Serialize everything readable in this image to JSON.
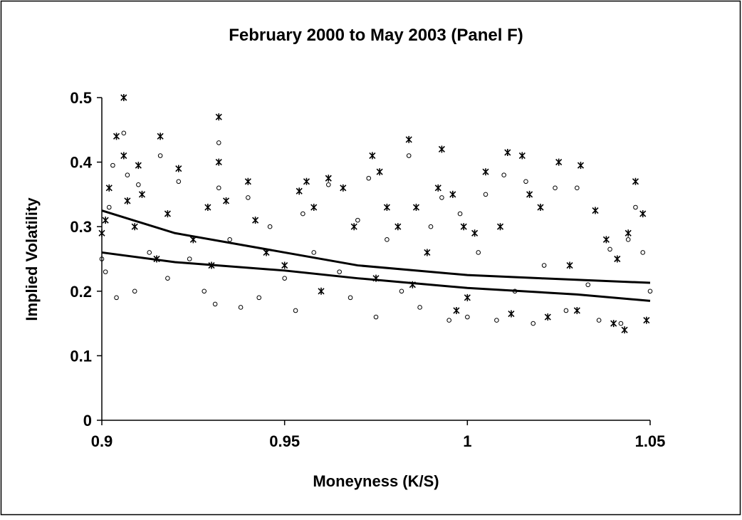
{
  "chart_data": {
    "type": "scatter",
    "title": "February 2000 to May 2003 (Panel F)",
    "x_label": "Moneyness (K/S)",
    "y_label": "Implied Volatility",
    "xlim": [
      0.9,
      1.05
    ],
    "xticks": [
      0.9,
      0.95,
      1,
      1.05
    ],
    "ylim": [
      0,
      0.5
    ],
    "yticks": [
      0,
      0.1,
      0.2,
      0.3,
      0.4,
      0.5
    ],
    "grid": false,
    "series": [
      {
        "kind": "scatter",
        "marker": "asterisk",
        "color": "#000000",
        "x": [
          0.9,
          0.901,
          0.902,
          0.904,
          0.906,
          0.906,
          0.907,
          0.909,
          0.91,
          0.911,
          0.916,
          0.918,
          0.921,
          0.925,
          0.929,
          0.932,
          0.932,
          0.934,
          0.94,
          0.942,
          0.945,
          0.95,
          0.954,
          0.956,
          0.958,
          0.962,
          0.966,
          0.969,
          0.974,
          0.976,
          0.978,
          0.981,
          0.984,
          0.986,
          0.989,
          0.992,
          0.993,
          0.996,
          0.999,
          1.002,
          1.005,
          1.009,
          1.011,
          1.015,
          1.017,
          1.02,
          1.025,
          1.028,
          1.031,
          1.035,
          1.038,
          1.041,
          1.043,
          1.044,
          1.046,
          1.048,
          1.049,
          0.997,
          1.012,
          1.022,
          0.96,
          0.93,
          0.915,
          0.985,
          1.04,
          0.975,
          1.0,
          1.03
        ],
        "values": [
          0.29,
          0.31,
          0.36,
          0.44,
          0.5,
          0.41,
          0.34,
          0.3,
          0.395,
          0.35,
          0.44,
          0.32,
          0.39,
          0.28,
          0.33,
          0.47,
          0.4,
          0.34,
          0.37,
          0.31,
          0.26,
          0.24,
          0.355,
          0.37,
          0.33,
          0.375,
          0.36,
          0.3,
          0.41,
          0.385,
          0.33,
          0.3,
          0.435,
          0.33,
          0.26,
          0.36,
          0.42,
          0.35,
          0.3,
          0.29,
          0.385,
          0.3,
          0.415,
          0.41,
          0.35,
          0.33,
          0.4,
          0.24,
          0.395,
          0.325,
          0.28,
          0.25,
          0.14,
          0.29,
          0.37,
          0.32,
          0.155,
          0.17,
          0.165,
          0.16,
          0.2,
          0.24,
          0.25,
          0.21,
          0.15,
          0.22,
          0.19,
          0.17
        ]
      },
      {
        "kind": "scatter",
        "marker": "circle",
        "color": "#000000",
        "x": [
          0.9,
          0.901,
          0.902,
          0.903,
          0.904,
          0.906,
          0.907,
          0.909,
          0.91,
          0.913,
          0.916,
          0.918,
          0.921,
          0.924,
          0.928,
          0.931,
          0.932,
          0.932,
          0.935,
          0.938,
          0.94,
          0.943,
          0.946,
          0.95,
          0.953,
          0.955,
          0.958,
          0.962,
          0.965,
          0.968,
          0.97,
          0.973,
          0.975,
          0.978,
          0.982,
          0.984,
          0.987,
          0.99,
          0.993,
          0.995,
          0.998,
          1.0,
          1.003,
          1.005,
          1.008,
          1.01,
          1.013,
          1.016,
          1.018,
          1.021,
          1.024,
          1.027,
          1.03,
          1.033,
          1.036,
          1.039,
          1.042,
          1.044,
          1.046,
          1.048,
          1.05
        ],
        "values": [
          0.25,
          0.23,
          0.33,
          0.395,
          0.19,
          0.445,
          0.38,
          0.2,
          0.365,
          0.26,
          0.41,
          0.22,
          0.37,
          0.25,
          0.2,
          0.18,
          0.43,
          0.36,
          0.28,
          0.175,
          0.345,
          0.19,
          0.3,
          0.22,
          0.17,
          0.32,
          0.26,
          0.365,
          0.23,
          0.19,
          0.31,
          0.375,
          0.16,
          0.28,
          0.2,
          0.41,
          0.175,
          0.3,
          0.345,
          0.155,
          0.32,
          0.16,
          0.26,
          0.35,
          0.155,
          0.38,
          0.2,
          0.37,
          0.15,
          0.24,
          0.36,
          0.17,
          0.36,
          0.21,
          0.155,
          0.265,
          0.15,
          0.28,
          0.33,
          0.26,
          0.2
        ]
      },
      {
        "kind": "line",
        "color": "#000000",
        "x": [
          0.9,
          0.92,
          0.95,
          0.97,
          1.0,
          1.02,
          1.05
        ],
        "values": [
          0.325,
          0.29,
          0.26,
          0.24,
          0.225,
          0.22,
          0.213
        ]
      },
      {
        "kind": "line",
        "color": "#000000",
        "x": [
          0.9,
          0.92,
          0.95,
          0.97,
          1.0,
          1.03,
          1.05
        ],
        "values": [
          0.26,
          0.245,
          0.232,
          0.22,
          0.205,
          0.195,
          0.185
        ]
      }
    ]
  }
}
